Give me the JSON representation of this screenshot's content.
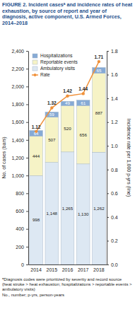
{
  "chart_data": {
    "type": "bar",
    "title": "FIGURE 2. Incident casesᵃ and incidence rates of heat exhaustion, by source of report and year of diagnosis, active component, U.S. Armed Forces, 2014–2018",
    "categories": [
      "2014",
      "2015",
      "2016",
      "2017",
      "2018"
    ],
    "stacked": true,
    "data_labels": true,
    "legend": "upper left",
    "grid": false,
    "series": [
      {
        "name": "Hospitalizations",
        "color": "#86aad5",
        "values": [
          64,
          59,
          49,
          61,
          65
        ]
      },
      {
        "name": "Reportable events",
        "color": "#f6f3c6",
        "values": [
          444,
          507,
          520,
          656,
          887
        ]
      },
      {
        "name": "Ambulatory visits",
        "color": "#dde8f3",
        "values": [
          998,
          1148,
          1265,
          1130,
          1262
        ],
        "value_labels": [
          "998",
          "1,148",
          "1,265",
          "1,130",
          "1,262"
        ]
      },
      {
        "name": "Rate",
        "type": "line",
        "axis": "y2",
        "color": "#f0913a",
        "marker": "circle",
        "values": [
          1.12,
          1.32,
          1.42,
          1.44,
          1.71
        ]
      }
    ],
    "ylabel": "No. of cases (bars)",
    "y2label": "Incidence rate per 1,000 p-yrs (line)",
    "ylim": [
      0,
      2400
    ],
    "yticks": [
      0,
      200,
      400,
      600,
      800,
      {
        "value": 1000,
        "label": "1,000"
      },
      {
        "value": 1200,
        "label": "1,200"
      },
      {
        "value": 1400,
        "label": "1,400"
      },
      {
        "value": 1600,
        "label": "1,600"
      },
      {
        "value": 1800,
        "label": "1,800"
      },
      {
        "value": 2000,
        "label": "2,000"
      },
      {
        "value": 2200,
        "label": "2,200"
      },
      {
        "value": 2400,
        "label": "2,400"
      }
    ],
    "y2lim": [
      0,
      1.8
    ],
    "y2ticks": [
      {
        "value": 0,
        "label": "0.0"
      },
      0.2,
      0.4,
      0.6,
      0.8,
      {
        "value": 1,
        "label": "1.0"
      },
      1.2,
      1.4,
      1.6,
      1.8
    ],
    "annotations": [
      "ᵃDiagnosis codes were prioritized by severity and record source (heat stroke > heat exhaustion; hospitalizations > reportable events > ambulatory visits)",
      "No., number; p-yrs, person-years"
    ]
  }
}
